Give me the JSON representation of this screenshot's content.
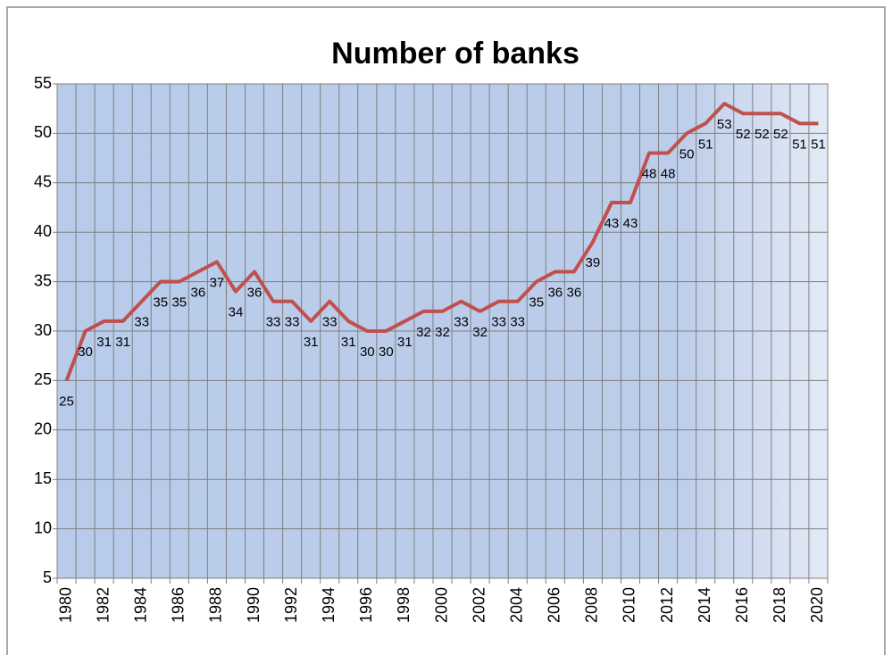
{
  "chart_data": {
    "type": "line",
    "title": "Number of banks",
    "categories": [
      "1980",
      null,
      "1982",
      null,
      "1984",
      null,
      "1986",
      null,
      "1988",
      null,
      "1990",
      null,
      "1992",
      null,
      "1994",
      null,
      "1996",
      null,
      "1998",
      null,
      "2000",
      null,
      "2002",
      null,
      "2004",
      null,
      "2006",
      null,
      "2008",
      null,
      "2010",
      null,
      "2012",
      null,
      "2014",
      null,
      "2016",
      null,
      "2018",
      null,
      "2020"
    ],
    "values": [
      25,
      30,
      31,
      31,
      33,
      35,
      35,
      36,
      37,
      34,
      36,
      33,
      33,
      31,
      33,
      31,
      30,
      30,
      31,
      32,
      32,
      33,
      32,
      33,
      33,
      35,
      36,
      36,
      39,
      43,
      43,
      48,
      48,
      50,
      51,
      53,
      52,
      52,
      52,
      51,
      51
    ],
    "color": "#c0504d",
    "ylim": [
      5,
      55
    ],
    "yticks": [
      5,
      10,
      15,
      20,
      25,
      30,
      35,
      40,
      45,
      50,
      55
    ],
    "grid": true
  }
}
